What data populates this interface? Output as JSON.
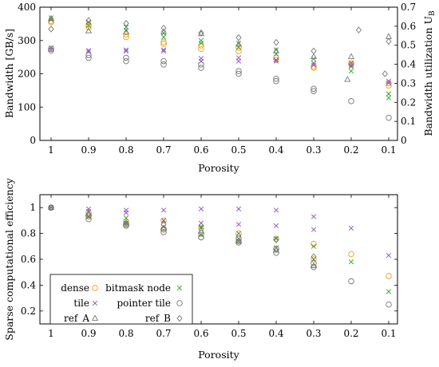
{
  "colors": {
    "dense": "#f0a020",
    "bitmask": "#2ca02c",
    "tile": "#8d4fc6",
    "pointer": "#777777",
    "ref_A": "#777777",
    "ref_B": "#777777"
  },
  "chart_data": [
    {
      "type": "scatter",
      "xlabel": "Porosity",
      "ylabel": "Bandwidth [GB/s]",
      "y2label": "Bandwidth utilization U",
      "y2label_sub": "B",
      "x_ticks": [
        "1",
        "0.9",
        "0.8",
        "0.7",
        "0.6",
        "0.5",
        "0.4",
        "0.3",
        "0.2",
        "0.1"
      ],
      "ylim": [
        0,
        400
      ],
      "y_ticks": [
        "0",
        "100",
        "200",
        "300",
        "400"
      ],
      "y2lim": [
        0,
        0.7
      ],
      "y2_ticks": [
        "0",
        "0.1",
        "0.2",
        "0.3",
        "0.4",
        "0.5",
        "0.6",
        "0.7"
      ],
      "series": [
        {
          "name": "dense",
          "marker": "circle",
          "color_key": "dense",
          "x": [
            1,
            1,
            0.9,
            0.9,
            0.8,
            0.8,
            0.7,
            0.7,
            0.6,
            0.6,
            0.5,
            0.5,
            0.4,
            0.4,
            0.3,
            0.3,
            0.2,
            0.2,
            0.1,
            0.1
          ],
          "y": [
            358,
            355,
            340,
            348,
            318,
            310,
            295,
            290,
            285,
            275,
            278,
            268,
            248,
            242,
            222,
            218,
            232,
            228,
            172,
            165
          ]
        },
        {
          "name": "bitmask node",
          "marker": "x",
          "color_key": "bitmask",
          "x": [
            1,
            1,
            0.9,
            0.9,
            0.8,
            0.8,
            0.7,
            0.7,
            0.6,
            0.6,
            0.5,
            0.5,
            0.4,
            0.4,
            0.3,
            0.3,
            0.2,
            0.2,
            0.1,
            0.1
          ],
          "y": [
            368,
            362,
            355,
            345,
            340,
            330,
            322,
            310,
            300,
            292,
            292,
            280,
            272,
            260,
            245,
            232,
            222,
            208,
            140,
            128
          ]
        },
        {
          "name": "tile",
          "marker": "x",
          "color_key": "tile",
          "x": [
            1,
            1,
            0.9,
            0.9,
            0.8,
            0.8,
            0.7,
            0.7,
            0.6,
            0.6,
            0.5,
            0.5,
            0.4,
            0.4,
            0.3,
            0.3,
            0.2,
            0.2,
            0.1,
            0.1
          ],
          "y": [
            278,
            272,
            270,
            266,
            272,
            268,
            272,
            268,
            246,
            238,
            248,
            238,
            242,
            238,
            232,
            226,
            232,
            226,
            178,
            172
          ]
        },
        {
          "name": "pointer tile",
          "marker": "circle",
          "color_key": "pointer",
          "x": [
            1,
            1,
            0.9,
            0.9,
            0.8,
            0.8,
            0.7,
            0.7,
            0.6,
            0.6,
            0.5,
            0.5,
            0.4,
            0.4,
            0.3,
            0.3,
            0.2,
            0.1
          ],
          "y": [
            275,
            270,
            256,
            248,
            248,
            238,
            238,
            228,
            228,
            218,
            208,
            200,
            185,
            178,
            155,
            148,
            118,
            68
          ]
        },
        {
          "name": "ref_A",
          "marker": "triangle",
          "color_key": "ref_A",
          "x": [
            1,
            0.9,
            0.8,
            0.7,
            0.6,
            0.5,
            0.4,
            0.3,
            0.2,
            0.21,
            0.1
          ],
          "y": [
            0.64,
            0.575,
            0.57,
            0.57,
            0.56,
            0.505,
            0.47,
            0.44,
            0.44,
            0.32,
            0.545
          ]
        },
        {
          "name": "ref_B",
          "marker": "diamond",
          "color_key": "ref_B",
          "x": [
            1,
            0.9,
            0.8,
            0.7,
            0.6,
            0.5,
            0.4,
            0.3,
            0.18,
            0.1,
            0.11
          ],
          "y": [
            0.585,
            0.63,
            0.615,
            0.59,
            0.565,
            0.54,
            0.515,
            0.47,
            0.58,
            0.52,
            0.35
          ]
        }
      ]
    },
    {
      "type": "scatter",
      "xlabel": "Porosity",
      "ylabel": "Sparse computational efficiency",
      "x_ticks": [
        "1",
        "0.9",
        "0.8",
        "0.7",
        "0.6",
        "0.5",
        "0.4",
        "0.3",
        "0.2",
        "0.1"
      ],
      "ylim": [
        0.1,
        1.1
      ],
      "y_ticks": [
        "0.2",
        "0.4",
        "0.6",
        "0.8",
        "1"
      ],
      "legend": [
        {
          "label": "dense",
          "marker": "circle",
          "color_key": "dense"
        },
        {
          "label": "bitmask node",
          "marker": "x",
          "color_key": "bitmask"
        },
        {
          "label": "tile",
          "marker": "x",
          "color_key": "tile"
        },
        {
          "label": "pointer tile",
          "marker": "circle",
          "color_key": "pointer"
        },
        {
          "label": "ref_A",
          "marker": "triangle",
          "color_key": "ref_A"
        },
        {
          "label": "ref_B",
          "marker": "diamond",
          "color_key": "ref_B"
        }
      ],
      "series": [
        {
          "name": "dense",
          "marker": "circle",
          "color_key": "dense",
          "x": [
            1,
            0.9,
            0.9,
            0.8,
            0.8,
            0.7,
            0.7,
            0.6,
            0.6,
            0.5,
            0.5,
            0.4,
            0.4,
            0.3,
            0.3,
            0.2,
            0.1
          ],
          "y": [
            1.0,
            0.96,
            0.93,
            0.89,
            0.87,
            0.9,
            0.84,
            0.84,
            0.77,
            0.8,
            0.74,
            0.76,
            0.68,
            0.72,
            0.6,
            0.64,
            0.47
          ]
        },
        {
          "name": "bitmask node",
          "marker": "x",
          "color_key": "bitmask",
          "x": [
            1,
            0.9,
            0.9,
            0.8,
            0.8,
            0.7,
            0.7,
            0.6,
            0.6,
            0.5,
            0.5,
            0.4,
            0.4,
            0.3,
            0.3,
            0.2,
            0.1
          ],
          "y": [
            1.0,
            0.97,
            0.93,
            0.92,
            0.88,
            0.9,
            0.85,
            0.85,
            0.79,
            0.8,
            0.74,
            0.76,
            0.69,
            0.7,
            0.6,
            0.58,
            0.35
          ]
        },
        {
          "name": "tile",
          "marker": "x",
          "color_key": "tile",
          "x": [
            1,
            0.9,
            0.9,
            0.8,
            0.8,
            0.7,
            0.7,
            0.6,
            0.6,
            0.5,
            0.5,
            0.4,
            0.4,
            0.3,
            0.3,
            0.2,
            0.1
          ],
          "y": [
            1.0,
            0.99,
            0.97,
            0.98,
            0.96,
            0.98,
            0.9,
            0.99,
            0.88,
            0.99,
            0.87,
            0.98,
            0.86,
            0.93,
            0.83,
            0.84,
            0.63
          ]
        },
        {
          "name": "pointer tile",
          "marker": "circle",
          "color_key": "pointer",
          "x": [
            1,
            0.9,
            0.9,
            0.8,
            0.8,
            0.7,
            0.7,
            0.6,
            0.6,
            0.5,
            0.5,
            0.4,
            0.4,
            0.3,
            0.3,
            0.2,
            0.1
          ],
          "y": [
            1.0,
            0.94,
            0.91,
            0.87,
            0.86,
            0.83,
            0.81,
            0.8,
            0.77,
            0.76,
            0.73,
            0.68,
            0.65,
            0.57,
            0.54,
            0.43,
            0.25
          ]
        },
        {
          "name": "ref_A",
          "marker": "triangle",
          "color_key": "ref_A",
          "x": [
            1,
            0.9,
            0.8,
            0.7,
            0.6,
            0.5,
            0.4,
            0.3
          ],
          "y": [
            1.0,
            0.95,
            0.88,
            0.84,
            0.82,
            0.74,
            0.67,
            0.55
          ]
        },
        {
          "name": "ref_B",
          "marker": "diamond",
          "color_key": "ref_B",
          "x": [
            1,
            0.9,
            0.8,
            0.7,
            0.6,
            0.5,
            0.4,
            0.3
          ],
          "y": [
            1.0,
            0.95,
            0.88,
            0.87,
            0.86,
            0.78,
            0.75,
            0.62
          ]
        }
      ]
    }
  ]
}
